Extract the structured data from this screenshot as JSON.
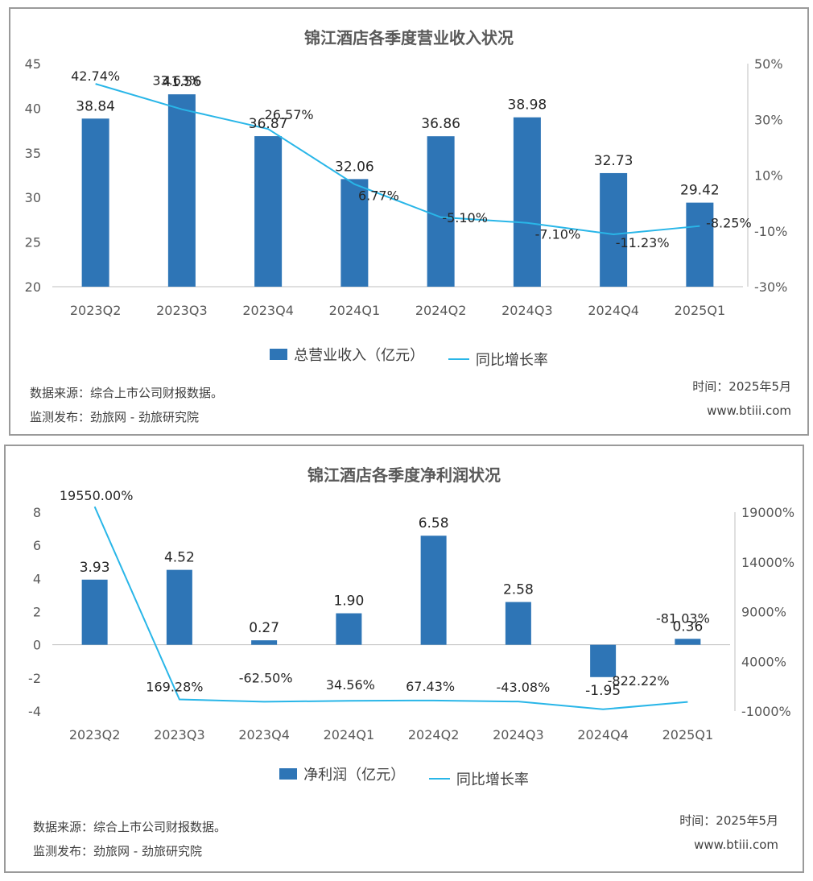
{
  "charts": [
    {
      "title": "锦江酒店各季度营业收入状况",
      "legend_bar": "总营业收入（亿元）",
      "legend_line": "同比增长率",
      "source": "数据来源：综合上市公司财报数据。",
      "publisher": "监测发布：劲旅网 - 劲旅研究院",
      "time": "时间：2025年5月",
      "site": "www.btiii.com"
    },
    {
      "title": "锦江酒店各季度净利润状况",
      "legend_bar": "净利润（亿元）",
      "legend_line": "同比增长率",
      "source": "数据来源：综合上市公司财报数据。",
      "publisher": "监测发布：劲旅网 - 劲旅研究院",
      "time": "时间：2025年5月",
      "site": "www.btiii.com"
    }
  ],
  "chart_data": [
    {
      "type": "bar+line",
      "title": "锦江酒店各季度营业收入状况",
      "categories": [
        "2023Q2",
        "2023Q3",
        "2023Q4",
        "2024Q1",
        "2024Q2",
        "2024Q3",
        "2024Q4",
        "2025Q1"
      ],
      "bar_series": {
        "name": "总营业收入（亿元）",
        "values": [
          38.84,
          41.56,
          36.87,
          32.06,
          36.86,
          38.98,
          32.73,
          29.42
        ],
        "labels": [
          "38.84",
          "41.56",
          "36.87",
          "32.06",
          "36.86",
          "38.98",
          "32.73",
          "29.42"
        ]
      },
      "line_series": {
        "name": "同比增长率",
        "values": [
          42.74,
          33.63,
          26.57,
          6.77,
          -5.1,
          -7.1,
          -11.23,
          -8.25
        ],
        "labels": [
          "42.74%",
          "33.63%",
          "26.57%",
          "6.77%",
          "-5.10%",
          "-7.10%",
          "-11.23%",
          "-8.25%"
        ]
      },
      "y_left": {
        "min": 20,
        "max": 45,
        "ticks": [
          20,
          25,
          30,
          35,
          40,
          45
        ],
        "tick_labels": [
          "20",
          "25",
          "30",
          "35",
          "40",
          "45"
        ]
      },
      "y_right": {
        "min": -30,
        "max": 50,
        "ticks": [
          -30,
          -10,
          10,
          30,
          50
        ],
        "tick_labels": [
          "-30%",
          "-10%",
          "10%",
          "30%",
          "50%"
        ]
      },
      "colors": {
        "bar": "#2e75b6",
        "line": "#29b6e8"
      }
    },
    {
      "type": "bar+line",
      "title": "锦江酒店各季度净利润状况",
      "categories": [
        "2023Q2",
        "2023Q3",
        "2023Q4",
        "2024Q1",
        "2024Q2",
        "2024Q3",
        "2024Q4",
        "2025Q1"
      ],
      "bar_series": {
        "name": "净利润（亿元）",
        "values": [
          3.93,
          4.52,
          0.27,
          1.9,
          6.58,
          2.58,
          -1.95,
          0.36
        ],
        "labels": [
          "3.93",
          "4.52",
          "0.27",
          "1.90",
          "6.58",
          "2.58",
          "-1.95",
          "0.36"
        ]
      },
      "line_series": {
        "name": "同比增长率",
        "values": [
          19550.0,
          169.28,
          -62.5,
          34.56,
          67.43,
          -43.08,
          -822.22,
          -81.03
        ],
        "labels": [
          "19550.00%",
          "169.28%",
          "-62.50%",
          "34.56%",
          "67.43%",
          "-43.08%",
          "-822.22%",
          "-81.03%"
        ]
      },
      "y_left": {
        "min": -4,
        "max": 8,
        "ticks": [
          -4,
          -2,
          0,
          2,
          4,
          6,
          8
        ],
        "tick_labels": [
          "-4",
          "-2",
          "0",
          "2",
          "4",
          "6",
          "8"
        ]
      },
      "y_right": {
        "min": -1000,
        "max": 19000,
        "ticks": [
          -1000,
          4000,
          9000,
          14000,
          19000
        ],
        "tick_labels": [
          "-1000%",
          "4000%",
          "9000%",
          "14000%",
          "19000%"
        ]
      },
      "colors": {
        "bar": "#2e75b6",
        "line": "#29b6e8"
      }
    }
  ]
}
